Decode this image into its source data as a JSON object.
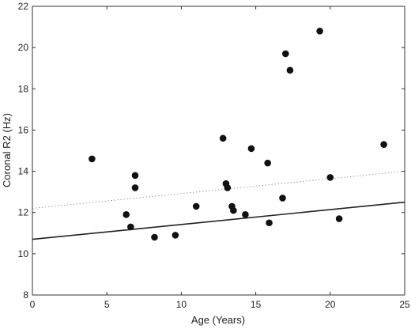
{
  "chart_data": {
    "type": "scatter",
    "title": "",
    "xlabel": "Age (Years)",
    "ylabel": "Coronal R2 (Hz)",
    "xlim": [
      0,
      25
    ],
    "ylim": [
      8,
      22
    ],
    "xticks": [
      0,
      5,
      10,
      15,
      20,
      25
    ],
    "yticks": [
      8,
      10,
      12,
      14,
      16,
      18,
      20,
      22
    ],
    "grid": false,
    "colors": {
      "points": "#111111",
      "fit_line": "#222222",
      "dotted_line": "#888888",
      "axes": "#333333"
    },
    "points": [
      {
        "x": 4.0,
        "y": 14.6
      },
      {
        "x": 6.3,
        "y": 11.9
      },
      {
        "x": 6.6,
        "y": 11.3
      },
      {
        "x": 6.9,
        "y": 13.8
      },
      {
        "x": 6.9,
        "y": 13.2
      },
      {
        "x": 8.2,
        "y": 10.8
      },
      {
        "x": 9.6,
        "y": 10.9
      },
      {
        "x": 11.0,
        "y": 12.3
      },
      {
        "x": 12.8,
        "y": 15.6
      },
      {
        "x": 13.0,
        "y": 13.4
      },
      {
        "x": 13.1,
        "y": 13.2
      },
      {
        "x": 13.4,
        "y": 12.3
      },
      {
        "x": 13.5,
        "y": 12.1
      },
      {
        "x": 14.3,
        "y": 11.9
      },
      {
        "x": 14.7,
        "y": 15.1
      },
      {
        "x": 15.8,
        "y": 14.4
      },
      {
        "x": 15.9,
        "y": 11.5
      },
      {
        "x": 16.8,
        "y": 12.7
      },
      {
        "x": 17.0,
        "y": 19.7
      },
      {
        "x": 17.3,
        "y": 18.9
      },
      {
        "x": 19.3,
        "y": 20.8
      },
      {
        "x": 20.0,
        "y": 13.7
      },
      {
        "x": 20.6,
        "y": 11.7
      },
      {
        "x": 23.6,
        "y": 15.3
      }
    ],
    "lines": [
      {
        "style": "solid",
        "x": [
          0,
          25
        ],
        "y": [
          10.7,
          12.5
        ]
      },
      {
        "style": "dotted",
        "x": [
          0,
          25
        ],
        "y": [
          12.2,
          14.0
        ]
      }
    ]
  }
}
